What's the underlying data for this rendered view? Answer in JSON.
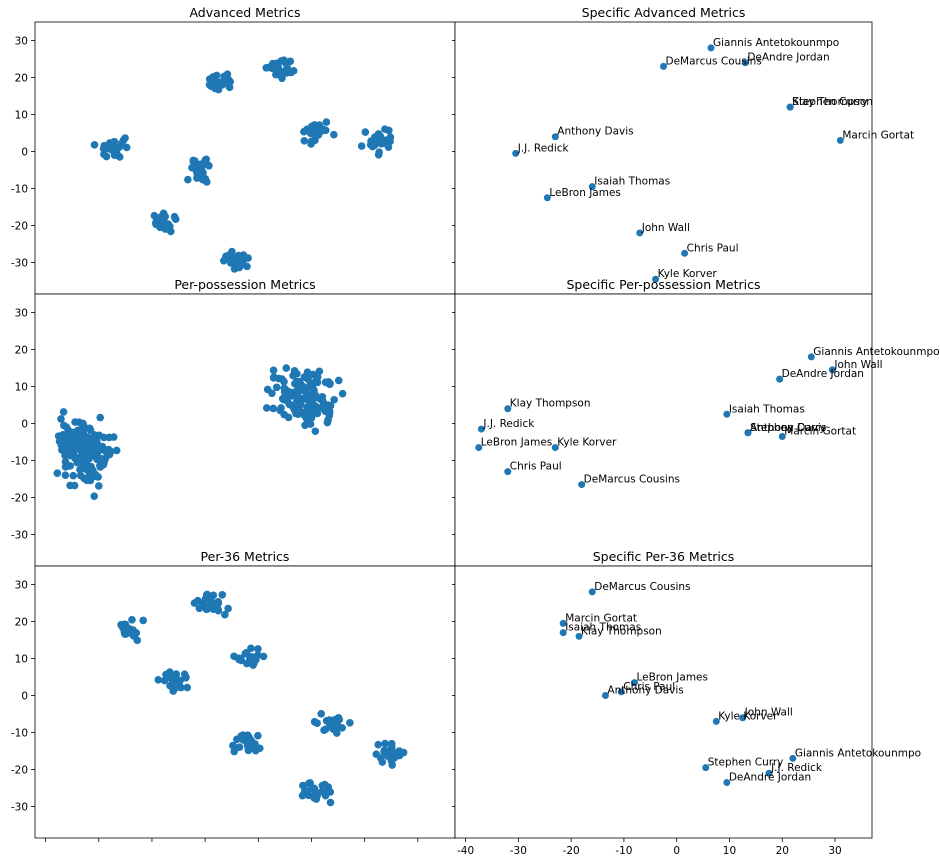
{
  "figure": {
    "background": "#ffffff",
    "marker_color": "#1f77b4",
    "shared_xlim": [
      -42,
      37
    ],
    "shared_ylim": [
      -38.5,
      35
    ],
    "x_ticks": [
      -40,
      -30,
      -20,
      -10,
      0,
      10,
      20,
      30
    ],
    "y_ticks": [
      -30,
      -20,
      -10,
      0,
      10,
      20,
      30
    ]
  },
  "chart_data": [
    {
      "type": "scatter",
      "title": "Advanced Metrics",
      "panel": "left",
      "clusters": [
        {
          "center": [
            -27,
            1
          ],
          "spread": [
            4.5,
            4.5
          ],
          "count": 28
        },
        {
          "center": [
            -10,
            -5
          ],
          "spread": [
            5,
            5
          ],
          "count": 26
        },
        {
          "center": [
            -7,
            19
          ],
          "spread": [
            4,
            4
          ],
          "count": 22
        },
        {
          "center": [
            4,
            23
          ],
          "spread": [
            5,
            5
          ],
          "count": 26
        },
        {
          "center": [
            11,
            5
          ],
          "spread": [
            4.5,
            4.5
          ],
          "count": 24
        },
        {
          "center": [
            23,
            3
          ],
          "spread": [
            4.5,
            4.5
          ],
          "count": 24
        },
        {
          "center": [
            -17,
            -19
          ],
          "spread": [
            4.5,
            4.5
          ],
          "count": 24
        },
        {
          "center": [
            -4,
            -30
          ],
          "spread": [
            4.5,
            4.5
          ],
          "count": 24
        }
      ]
    },
    {
      "type": "scatter",
      "title": "Specific Advanced Metrics",
      "panel": "right",
      "points": [
        {
          "label": "Giannis Antetokounmpo",
          "x": 6.5,
          "y": 28
        },
        {
          "label": "DeAndre Jordan",
          "x": 13,
          "y": 24
        },
        {
          "label": "DeMarcus Cousins",
          "x": -2.5,
          "y": 23
        },
        {
          "label": "Stephen Curry",
          "x": 21.5,
          "y": 12
        },
        {
          "label": "Klay Thompson",
          "x": 21.5,
          "y": 12
        },
        {
          "label": "Marcin Gortat",
          "x": 31,
          "y": 3
        },
        {
          "label": "Anthony Davis",
          "x": -23,
          "y": 4
        },
        {
          "label": "J.J. Redick",
          "x": -30.5,
          "y": -0.5
        },
        {
          "label": "Isaiah Thomas",
          "x": -16,
          "y": -9.5
        },
        {
          "label": "LeBron James",
          "x": -24.5,
          "y": -12.5
        },
        {
          "label": "John Wall",
          "x": -7,
          "y": -22
        },
        {
          "label": "Chris Paul",
          "x": 1.5,
          "y": -27.5
        },
        {
          "label": "Kyle Korver",
          "x": -4,
          "y": -34.5
        }
      ]
    },
    {
      "type": "scatter",
      "title": "Per-possession Metrics",
      "panel": "left",
      "clusters": [
        {
          "center": [
            -32,
            -8
          ],
          "spread": [
            8,
            14
          ],
          "count": 130
        },
        {
          "center": [
            -35,
            -5
          ],
          "spread": [
            5,
            9
          ],
          "count": 40
        },
        {
          "center": [
            9,
            7
          ],
          "spread": [
            10,
            13
          ],
          "count": 140
        }
      ]
    },
    {
      "type": "scatter",
      "title": "Specific Per-possession Metrics",
      "panel": "right",
      "points": [
        {
          "label": "Giannis Antetokounmpo",
          "x": 25.5,
          "y": 18
        },
        {
          "label": "John Wall",
          "x": 29.5,
          "y": 14.5
        },
        {
          "label": "DeAndre Jordan",
          "x": 19.5,
          "y": 12
        },
        {
          "label": "Klay Thompson",
          "x": -32,
          "y": 4
        },
        {
          "label": "Isaiah Thomas",
          "x": 9.5,
          "y": 2.5
        },
        {
          "label": "J.J. Redick",
          "x": -37,
          "y": -1.5
        },
        {
          "label": "Stephen Curry",
          "x": 13.5,
          "y": -2.5
        },
        {
          "label": "Anthony Davis",
          "x": 13.5,
          "y": -2.5
        },
        {
          "label": "Marcin Gortat",
          "x": 20,
          "y": -3.5
        },
        {
          "label": "LeBron James",
          "x": -37.5,
          "y": -6.5
        },
        {
          "label": "Kyle Korver",
          "x": -23,
          "y": -6.5
        },
        {
          "label": "Chris Paul",
          "x": -32,
          "y": -13
        },
        {
          "label": "DeMarcus Cousins",
          "x": -18,
          "y": -16.5
        }
      ]
    },
    {
      "type": "scatter",
      "title": "Per-36 Metrics",
      "panel": "left",
      "clusters": [
        {
          "center": [
            -24,
            18
          ],
          "spread": [
            4.5,
            4.5
          ],
          "count": 22
        },
        {
          "center": [
            -9,
            25
          ],
          "spread": [
            5,
            5
          ],
          "count": 26
        },
        {
          "center": [
            -16,
            4
          ],
          "spread": [
            4.5,
            4.5
          ],
          "count": 22
        },
        {
          "center": [
            -2,
            11
          ],
          "spread": [
            4.5,
            4.5
          ],
          "count": 20
        },
        {
          "center": [
            -2,
            -13
          ],
          "spread": [
            5,
            5
          ],
          "count": 24
        },
        {
          "center": [
            14,
            -7
          ],
          "spread": [
            5,
            5
          ],
          "count": 24
        },
        {
          "center": [
            25,
            -16
          ],
          "spread": [
            5,
            5
          ],
          "count": 24
        },
        {
          "center": [
            11,
            -26
          ],
          "spread": [
            5,
            5
          ],
          "count": 26
        }
      ]
    },
    {
      "type": "scatter",
      "title": "Specific Per-36 Metrics",
      "panel": "right",
      "points": [
        {
          "label": "DeMarcus Cousins",
          "x": -16,
          "y": 28
        },
        {
          "label": "Marcin Gortat",
          "x": -21.5,
          "y": 19.5
        },
        {
          "label": "Isaiah Thomas",
          "x": -21.5,
          "y": 17
        },
        {
          "label": "Klay Thompson",
          "x": -18.5,
          "y": 16
        },
        {
          "label": "LeBron James",
          "x": -8,
          "y": 3.5
        },
        {
          "label": "Chris Paul",
          "x": -10.5,
          "y": 1
        },
        {
          "label": "Anthony Davis",
          "x": -13.5,
          "y": 0
        },
        {
          "label": "John Wall",
          "x": 12.5,
          "y": -6
        },
        {
          "label": "Kyle Korver",
          "x": 7.5,
          "y": -7
        },
        {
          "label": "Giannis Antetokounmpo",
          "x": 22,
          "y": -17
        },
        {
          "label": "Stephen Curry",
          "x": 5.5,
          "y": -19.5
        },
        {
          "label": "J.J. Redick",
          "x": 17.5,
          "y": -21
        },
        {
          "label": "DeAndre Jordan",
          "x": 9.5,
          "y": -23.5
        }
      ]
    }
  ]
}
